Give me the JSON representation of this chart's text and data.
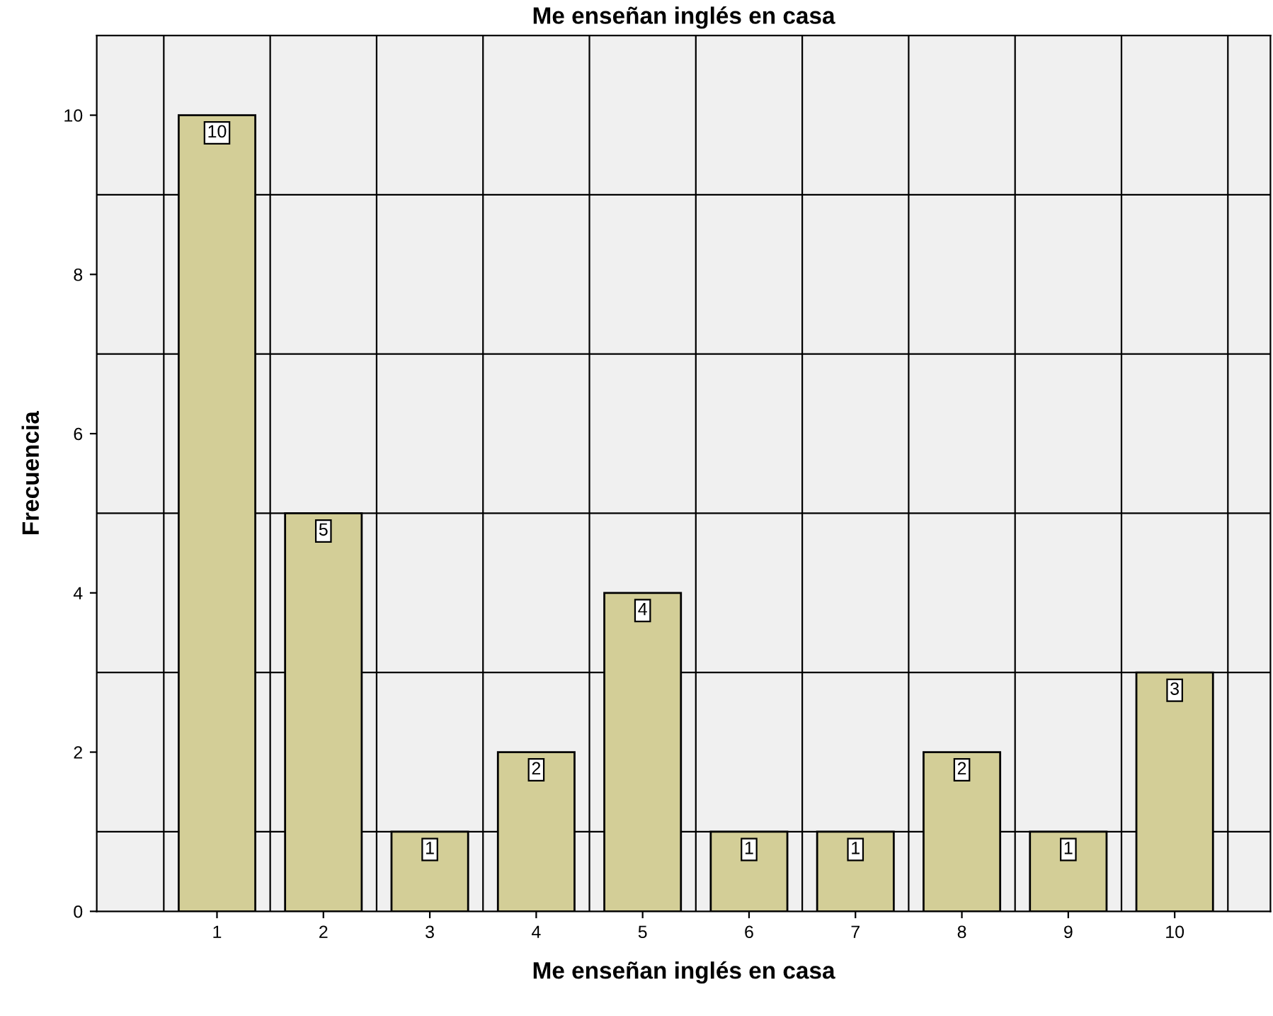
{
  "chart_data": {
    "type": "bar",
    "title": "Me enseñan inglés en casa",
    "xlabel": "Me enseñan inglés en casa",
    "ylabel": "Frecuencia",
    "categories": [
      "1",
      "2",
      "3",
      "4",
      "5",
      "6",
      "7",
      "8",
      "9",
      "10"
    ],
    "values": [
      10,
      5,
      1,
      2,
      4,
      1,
      1,
      2,
      1,
      3
    ],
    "color": "#d3ce97",
    "ylim": [
      0,
      11
    ],
    "yticks": [
      0,
      {
        "value": 1,
        "label": null
      },
      2,
      {
        "value": 3,
        "label": null
      },
      4,
      {
        "value": 5,
        "label": null
      },
      6,
      {
        "value": 7,
        "label": null
      },
      8,
      {
        "value": 9,
        "label": null
      },
      10
    ],
    "grid": true,
    "data_labels": true
  }
}
